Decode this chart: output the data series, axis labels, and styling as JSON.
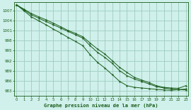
{
  "title": "Graphe pression niveau de la mer (hPa)",
  "bg_color": "#cff0eb",
  "grid_color": "#a0ccbf",
  "line_color": "#1a5c1a",
  "xlim": [
    -0.3,
    23.3
  ],
  "ylim": [
    981.5,
    1009.5
  ],
  "yticks": [
    983,
    986,
    989,
    992,
    995,
    998,
    1001,
    1004,
    1007
  ],
  "xticks": [
    0,
    1,
    2,
    3,
    4,
    5,
    6,
    7,
    8,
    9,
    10,
    11,
    12,
    13,
    14,
    15,
    16,
    17,
    18,
    19,
    20,
    21,
    22,
    23
  ],
  "line1": [
    1008.8,
    1007.3,
    1005.8,
    1004.8,
    1003.8,
    1002.8,
    1001.8,
    1000.8,
    999.8,
    998.8,
    996.5,
    994.5,
    993.0,
    991.2,
    989.0,
    987.5,
    986.5,
    985.8,
    985.0,
    984.2,
    983.8,
    983.5,
    983.3,
    983.2
  ],
  "line2": [
    1008.8,
    1007.5,
    1006.2,
    1005.2,
    1004.3,
    1003.3,
    1002.2,
    1001.1,
    1000.2,
    999.2,
    997.3,
    995.5,
    994.0,
    992.0,
    990.0,
    988.5,
    987.0,
    986.2,
    985.4,
    984.5,
    984.0,
    983.8,
    983.7,
    984.5
  ],
  "line3": [
    1008.8,
    1007.0,
    1005.2,
    1004.0,
    1002.8,
    1001.5,
    1000.3,
    999.0,
    997.8,
    996.5,
    993.8,
    991.5,
    989.8,
    987.8,
    985.8,
    984.5,
    984.0,
    983.8,
    983.6,
    983.4,
    983.2,
    983.1,
    983.3,
    983.5
  ]
}
